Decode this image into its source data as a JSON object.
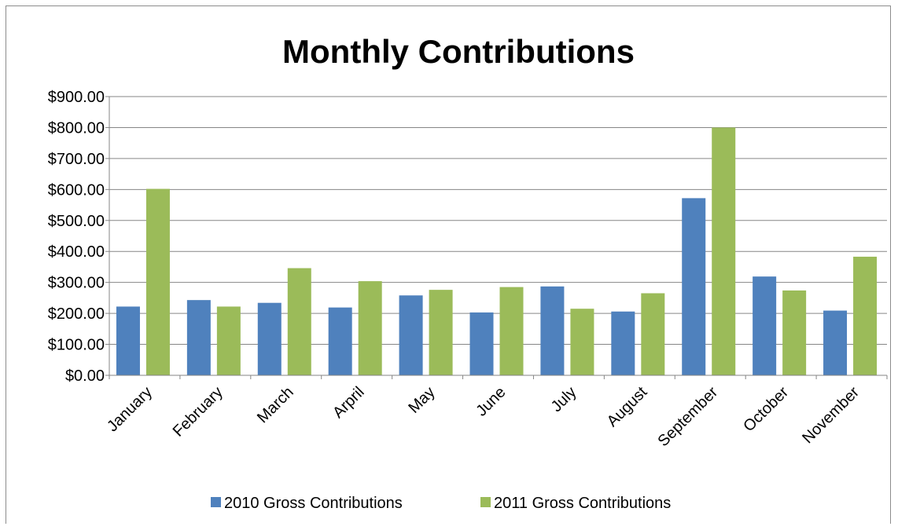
{
  "chart_data": {
    "type": "bar",
    "title": "Monthly Contributions",
    "xlabel": "",
    "ylabel": "",
    "categories": [
      "January",
      "February",
      "March",
      "Arpril",
      "May",
      "June",
      "July",
      "August",
      "September",
      "October",
      "November"
    ],
    "series": [
      {
        "name": "2010 Gross Contributions",
        "color": "#4f81bd",
        "values": [
          222,
          243,
          234,
          219,
          258,
          203,
          287,
          206,
          572,
          319,
          209
        ]
      },
      {
        "name": "2011 Gross Contributions",
        "color": "#9bbb59",
        "values": [
          602,
          222,
          346,
          304,
          276,
          285,
          215,
          265,
          800,
          274,
          383
        ]
      }
    ],
    "ylim": [
      0,
      900
    ],
    "yticks": [
      "$0.00",
      "$100.00",
      "$200.00",
      "$300.00",
      "$400.00",
      "$500.00",
      "$600.00",
      "$700.00",
      "$800.00",
      "$900.00"
    ],
    "grid": true,
    "legend_position": "bottom"
  }
}
